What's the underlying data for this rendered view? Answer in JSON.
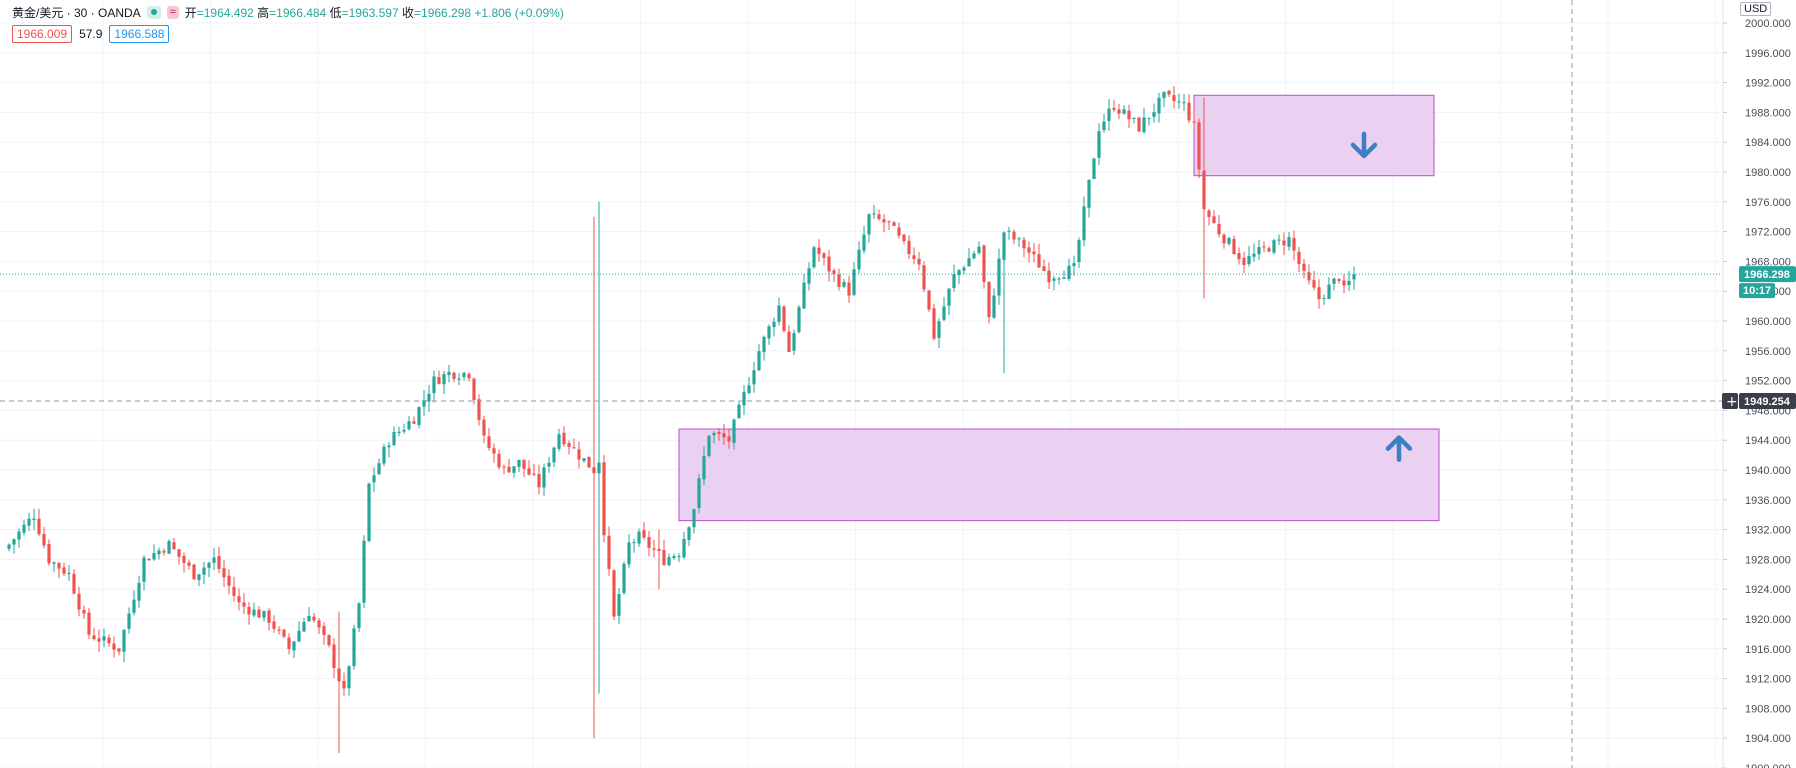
{
  "header": {
    "symbol": "黄金/美元 · 30 · OANDA",
    "wave_icon": "≈",
    "open_label": "开",
    "open_value": "=1964.492",
    "high_label": "高",
    "high_value": "=1966.484",
    "low_label": "低",
    "low_value": "=1963.597",
    "close_label": "收",
    "close_value": "=1966.298",
    "change": "+1.806 (+0.09%)",
    "bid": "1966.009",
    "spread": "57.9",
    "ask": "1966.588",
    "currency": "USD"
  },
  "colors": {
    "up": "#26a69a",
    "down": "#ef5350",
    "zone_fill": "#e6c9ee",
    "zone_border": "#b64fc8",
    "arrow": "#3d7fc4",
    "crosshair_tag": "#3a3e4a",
    "last_price_tag": "#26a69a"
  },
  "chart_data": {
    "type": "candlestick",
    "ylim": [
      1900,
      2002
    ],
    "y_ticks": [
      "2000.000",
      "1996.000",
      "1992.000",
      "1988.000",
      "1984.000",
      "1980.000",
      "1976.000",
      "1972.000",
      "1968.000",
      "1964.000",
      "1960.000",
      "1956.000",
      "1952.000",
      "1948.000",
      "1944.000",
      "1940.000",
      "1936.000",
      "1932.000",
      "1928.000",
      "1924.000",
      "1920.000",
      "1916.000",
      "1912.000",
      "1908.000",
      "1904.000",
      "1900.000"
    ],
    "anchors": [
      [
        0,
        1930
      ],
      [
        5,
        1934
      ],
      [
        8,
        1928
      ],
      [
        12,
        1926
      ],
      [
        16,
        1918
      ],
      [
        22,
        1916
      ],
      [
        27,
        1928
      ],
      [
        32,
        1930
      ],
      [
        37,
        1926
      ],
      [
        41,
        1928
      ],
      [
        46,
        1922
      ],
      [
        52,
        1920
      ],
      [
        56,
        1916
      ],
      [
        60,
        1921
      ],
      [
        64,
        1916
      ],
      [
        67,
        1910
      ],
      [
        70,
        1922
      ],
      [
        72,
        1938
      ],
      [
        76,
        1944
      ],
      [
        81,
        1947
      ],
      [
        85,
        1952
      ],
      [
        88,
        1953
      ],
      [
        92,
        1953
      ],
      [
        95,
        1944
      ],
      [
        99,
        1940
      ],
      [
        102,
        1941
      ],
      [
        106,
        1938
      ],
      [
        110,
        1945
      ],
      [
        114,
        1942
      ],
      [
        117,
        1940
      ],
      [
        118,
        1972
      ],
      [
        119,
        1932
      ],
      [
        121,
        1920
      ],
      [
        124,
        1930
      ],
      [
        126,
        1931
      ],
      [
        131,
        1928
      ],
      [
        134,
        1929
      ],
      [
        137,
        1935
      ],
      [
        140,
        1945
      ],
      [
        144,
        1944
      ],
      [
        146,
        1948
      ],
      [
        150,
        1956
      ],
      [
        154,
        1962
      ],
      [
        156,
        1956
      ],
      [
        161,
        1970
      ],
      [
        165,
        1966
      ],
      [
        168,
        1964
      ],
      [
        172,
        1974
      ],
      [
        176,
        1973
      ],
      [
        179,
        1970
      ],
      [
        182,
        1968
      ],
      [
        185,
        1958
      ],
      [
        189,
        1966
      ],
      [
        194,
        1970
      ],
      [
        196,
        1960
      ],
      [
        199,
        1972
      ],
      [
        203,
        1970
      ],
      [
        208,
        1966
      ],
      [
        213,
        1967
      ],
      [
        218,
        1986
      ],
      [
        221,
        1989
      ],
      [
        226,
        1986
      ],
      [
        231,
        1990
      ],
      [
        235,
        1989
      ],
      [
        237,
        1986
      ],
      [
        239,
        1975
      ],
      [
        242,
        1972
      ],
      [
        247,
        1968
      ],
      [
        252,
        1970
      ],
      [
        256,
        1971
      ],
      [
        259,
        1966
      ],
      [
        262,
        1963
      ],
      [
        266,
        1966
      ],
      [
        267,
        1964
      ],
      [
        269,
        1966.298
      ]
    ],
    "last_price": 1966.298,
    "last_price_label": "1966.298",
    "countdown": "10:17",
    "crosshair_price": 1949.254,
    "crosshair_label": "1949.254",
    "crosshair_plus": "+",
    "zones": [
      {
        "name": "supply-zone",
        "x_start": 237,
        "x_end": 285,
        "y_top": 1990.3,
        "y_bottom": 1979.5
      },
      {
        "name": "demand-zone",
        "x_start": 134,
        "x_end": 286,
        "y_top": 1945.5,
        "y_bottom": 1933.2
      }
    ],
    "arrows": [
      {
        "name": "down-arrow-icon",
        "direction": "down",
        "x": 271,
        "y": 1983.5
      },
      {
        "name": "up-arrow-icon",
        "direction": "up",
        "x": 278,
        "y": 1943.0
      }
    ]
  }
}
